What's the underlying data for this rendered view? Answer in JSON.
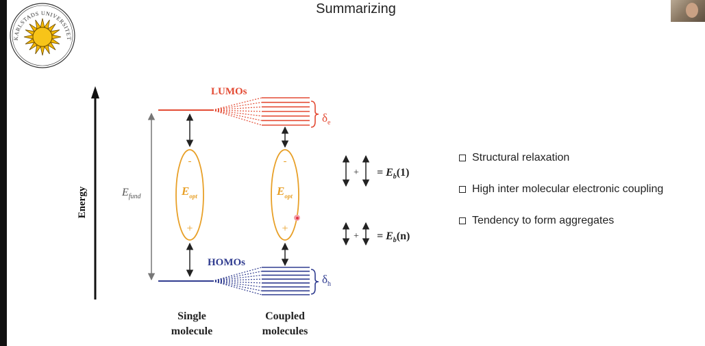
{
  "slide": {
    "title": "Summarizing"
  },
  "logo": {
    "text": "KARLSTADS UNIVERSITET",
    "icon": "sun-icon"
  },
  "diagram": {
    "axis_label": "Energy",
    "lumo_label": "LUMOs",
    "homo_label": "HOMOs",
    "delta_e": "δ",
    "delta_e_sub": "e",
    "delta_h": "δ",
    "delta_h_sub": "h",
    "e_fund": "E",
    "e_fund_sub": "fund",
    "e_opt": "E",
    "e_opt_sub": "opt",
    "minus": "-",
    "plus": "+",
    "single_label_1": "Single",
    "single_label_2": "molecule",
    "coupled_label_1": "Coupled",
    "coupled_label_2": "molecules",
    "eq1_lhs": "= E",
    "eq1_sub": "b",
    "eq1_arg": "(1)",
    "eq2_lhs": "= E",
    "eq2_sub": "b",
    "eq2_arg": "(n)",
    "colors": {
      "lumo": "#e34a33",
      "homo": "#2f3b8f",
      "exciton": "#e8a028",
      "arrow": "#222222",
      "fund_arrow": "#777777"
    }
  },
  "bullets": [
    "Structural relaxation",
    "High inter molecular electronic coupling",
    "Tendency to form aggregates"
  ]
}
